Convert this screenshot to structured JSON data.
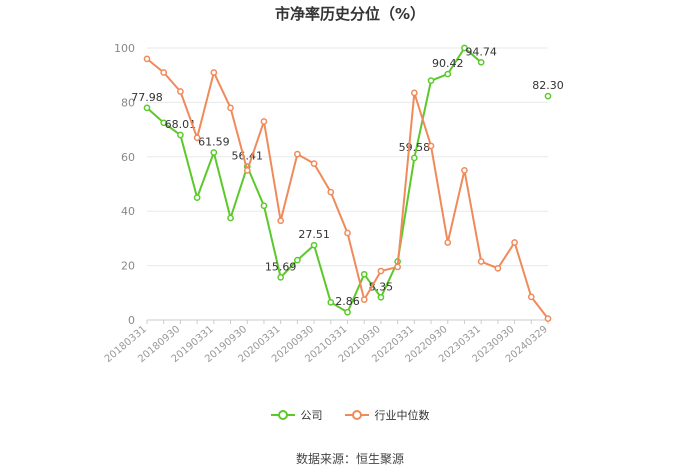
{
  "chart_data": {
    "type": "line",
    "title": "市净率历史分位（%）",
    "xlabel": "",
    "ylabel": "",
    "ylim": [
      0,
      100
    ],
    "yticks": [
      0,
      20,
      40,
      60,
      80,
      100
    ],
    "x": [
      "20180331",
      "20180630",
      "20180930",
      "20181231",
      "20190331",
      "20190630",
      "20190930",
      "20191231",
      "20200331",
      "20200630",
      "20200930",
      "20201231",
      "20210331",
      "20210630",
      "20210930",
      "20211231",
      "20220331",
      "20220630",
      "20220930",
      "20221231",
      "20230331",
      "20230630",
      "20230930",
      "20231231",
      "20240329"
    ],
    "xtick_labels": [
      "20180331",
      "20180930",
      "20190331",
      "20190930",
      "20200331",
      "20200930",
      "20210331",
      "20210930",
      "20220331",
      "20220930",
      "20230331",
      "20230930",
      "20240329"
    ],
    "series": [
      {
        "name": "公司",
        "color": "#5bc92a",
        "values": [
          77.98,
          72.5,
          68.01,
          45.0,
          61.59,
          37.5,
          56.41,
          42.0,
          15.69,
          22.0,
          27.51,
          6.5,
          2.86,
          16.8,
          8.35,
          21.5,
          59.58,
          88.0,
          90.42,
          100.0,
          94.74,
          null,
          null,
          null,
          82.3
        ],
        "labels": {
          "0": "77.98",
          "2": "68.01",
          "4": "61.59",
          "6": "56.41",
          "8": "15.69",
          "10": "27.51",
          "12": "2.86",
          "14": "8.35",
          "16": "59.58",
          "18": "90.42",
          "20": "94.74",
          "24": "82.30"
        }
      },
      {
        "name": "行业中位数",
        "color": "#f08a5a",
        "values": [
          96.0,
          91.0,
          84.0,
          67.0,
          91.0,
          78.0,
          55.0,
          73.0,
          36.5,
          61.0,
          57.5,
          47.0,
          32.0,
          7.5,
          18.0,
          19.5,
          83.5,
          64.0,
          28.5,
          55.0,
          21.5,
          19.0,
          28.5,
          8.5,
          0.5
        ],
        "labels": {}
      }
    ],
    "grid": true,
    "legend_placement": "bottom"
  },
  "source": "数据来源：恒生聚源"
}
